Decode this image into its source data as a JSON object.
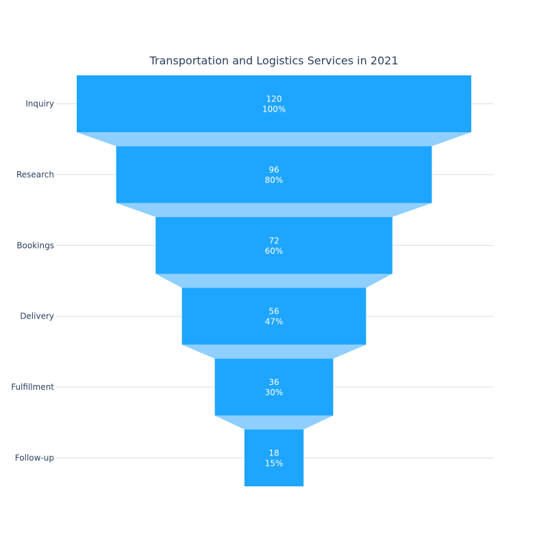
{
  "chart_data": {
    "type": "funnel",
    "title": "Transportation and Logistics Services in 2021",
    "categories": [
      "Inquiry",
      "Research",
      "Bookings",
      "Delivery",
      "Fulfillment",
      "Follow-up"
    ],
    "values": [
      120,
      96,
      72,
      56,
      36,
      18
    ],
    "percent_labels": [
      "100%",
      "80%",
      "60%",
      "47%",
      "30%",
      "15%"
    ],
    "colors": {
      "bar": "#1ea5ff",
      "connector": "#8fcfff",
      "grid": "#d9dde3",
      "text": "#2a3f5f",
      "bar_text": "#ffffff"
    },
    "grid": true
  }
}
